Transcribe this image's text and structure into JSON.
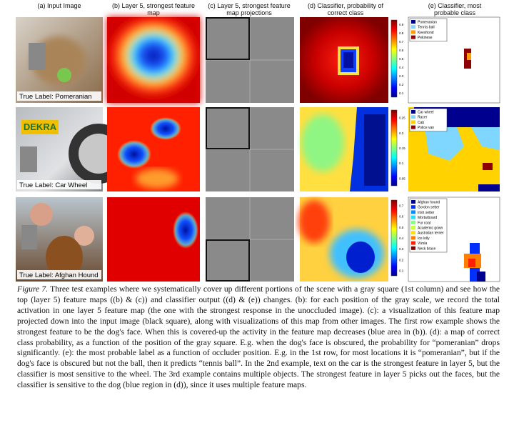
{
  "columns": [
    "(a) Input Image",
    "(b) Layer 5, strongest feature map",
    "(c) Layer 5, strongest feature map projections",
    "(d) Classifier, probability of correct class",
    "(e) Classifier, most probable class"
  ],
  "rows": [
    {
      "true_label": "True Label: Pomeranian",
      "colorbar_ticks": [
        "0.9",
        "0.8",
        "0.7",
        "0.6",
        "0.5",
        "0.4",
        "0.3",
        "0.2",
        "0.1"
      ],
      "legend": [
        {
          "label": "Pomeranian",
          "color": "#00008f"
        },
        {
          "label": "Tennis ball",
          "color": "#7fd6ff"
        },
        {
          "label": "Keeshond",
          "color": "#ff9a00"
        },
        {
          "label": "Pekinese",
          "color": "#8f0000"
        }
      ]
    },
    {
      "true_label": "True Label: Car Wheel",
      "photo_text": "DEKRA",
      "colorbar_ticks": [
        "0.25",
        "0.2",
        "0.15",
        "0.1",
        "0.05"
      ],
      "legend": [
        {
          "label": "Car wheel",
          "color": "#00008f"
        },
        {
          "label": "Racer",
          "color": "#7fd6ff"
        },
        {
          "label": "Cab",
          "color": "#ffd200"
        },
        {
          "label": "Police van",
          "color": "#8f0000"
        }
      ]
    },
    {
      "true_label": "True Label: Afghan Hound",
      "colorbar_ticks": [
        "0.7",
        "0.6",
        "0.5",
        "0.4",
        "0.3",
        "0.2",
        "0.1"
      ],
      "legend": [
        {
          "label": "Afghan hound",
          "color": "#00008f"
        },
        {
          "label": "Gordon setter",
          "color": "#0030ff"
        },
        {
          "label": "Irish setter",
          "color": "#0090ff"
        },
        {
          "label": "Mortarboard",
          "color": "#20e0ff"
        },
        {
          "label": "Fur coat",
          "color": "#80ff80"
        },
        {
          "label": "Academic gown",
          "color": "#c8ff40"
        },
        {
          "label": "Australian terrier",
          "color": "#ffe000"
        },
        {
          "label": "Ice lolly",
          "color": "#ff8000"
        },
        {
          "label": "Vizsla",
          "color": "#ff2000"
        },
        {
          "label": "Neck brace",
          "color": "#800000"
        }
      ]
    }
  ],
  "caption": {
    "label": "Figure 7.",
    "text": "Three test examples where we systematically cover up different portions of the scene with a gray square (1st column) and see how the top (layer 5) feature maps ((b) & (c)) and classifier output ((d) & (e)) changes. (b): for each position of the gray scale, we record the total activation in one layer 5 feature map (the one with the strongest response in the unoccluded image). (c): a visualization of this feature map projected down into the input image (black square), along with visualizations of this map from other images. The first row example shows the strongest feature to be the dog's face. When this is covered-up the activity in the feature map decreases (blue area in (b)). (d): a map of correct class probability, as a function of the position of the gray square. E.g. when the dog's face is obscured, the probability for “pomeranian” drops significantly. (e): the most probable label as a function of occluder position. E.g. in the 1st row, for most locations it is “pomeranian”, but if the dog's face is obscured but not the ball, then it predicts “tennis ball”. In the 2nd example, text on the car is the strongest feature in layer 5, but the classifier is most sensitive to the wheel. The 3rd example contains multiple objects. The strongest feature in layer 5 picks out the faces, but the classifier is sensitive to the dog (blue region in (d)), since it uses multiple feature maps."
  }
}
